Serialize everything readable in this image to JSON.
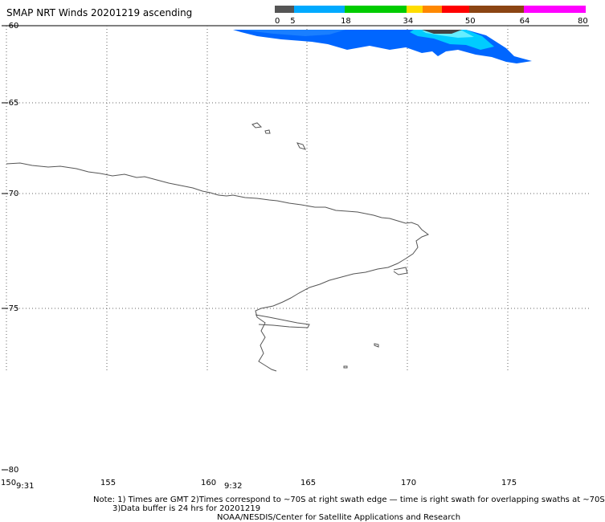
{
  "title": "SMAP NRT Winds 20201219 ascending",
  "colorbar": {
    "labels": [
      "0",
      "5",
      "18",
      "34",
      "50",
      "64",
      "80"
    ],
    "segments": [
      {
        "color": "#555555",
        "from": 0,
        "to": 5
      },
      {
        "color": "#00aaff",
        "from": 5,
        "to": 18
      },
      {
        "color": "#00cc00",
        "from": 18,
        "to": 34
      },
      {
        "color": "#ffdd00",
        "from": 34,
        "to": 38
      },
      {
        "color": "#ff8800",
        "from": 38,
        "to": 43
      },
      {
        "color": "#ff0000",
        "from": 43,
        "to": 50
      },
      {
        "color": "#8b4513",
        "from": 50,
        "to": 64
      },
      {
        "color": "#ff00ff",
        "from": 64,
        "to": 80
      }
    ]
  },
  "lat_labels": [
    "-60",
    "-65",
    "-70",
    "-75",
    "-80"
  ],
  "lon_labels": [
    "150",
    "155",
    "160",
    "165",
    "170",
    "175"
  ],
  "time_labels": [
    "9:31",
    "9:32"
  ],
  "notes": {
    "line1": "Note: 1) Times are GMT 2)Times correspond to ~70S at right swath edge — time is right swath for overlapping swaths at ~70S",
    "line2": "3)Data buffer is 24 hrs for 20201219",
    "line3": "NOAA/NESDIS/Center for Satellite Applications and Research"
  },
  "colors": {
    "swath_blue": "#0066ff",
    "swath_cyan": "#00ccff",
    "swath_gray": "#444444",
    "coast": "#555555",
    "grid": "#666666"
  }
}
